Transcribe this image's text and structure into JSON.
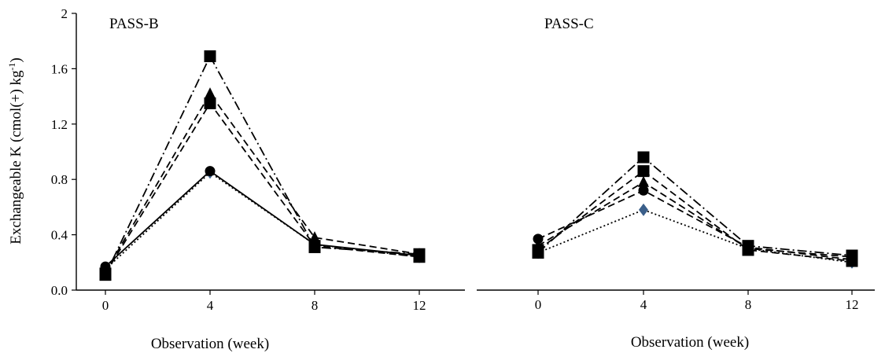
{
  "chart_data": [
    {
      "type": "line",
      "title": "PASS-B",
      "xlabel": "Observation (week)",
      "ylabel": "Exchangeable K (cmol(+) kg-1)",
      "ylabel_parts": {
        "main": "Exchangeable K (cmol(+) kg",
        "sup": "-1",
        "tail": ")"
      },
      "categories": [
        "0",
        "4",
        "8",
        "12"
      ],
      "x": [
        0,
        4,
        8,
        12
      ],
      "yticks": [
        "0.0",
        "0.4",
        "0.8",
        "1.2",
        "1.6",
        "2"
      ],
      "ylim": [
        0,
        2
      ],
      "grid": false,
      "series": [
        {
          "marker": "diamond",
          "line": "dotted",
          "color": "#3b5f8a",
          "values": [
            0.15,
            0.85,
            0.33,
            0.24
          ]
        },
        {
          "marker": "circle",
          "line": "solid",
          "color": "#000000",
          "values": [
            0.17,
            0.86,
            0.33,
            0.25
          ]
        },
        {
          "marker": "triangle",
          "line": "dashed",
          "color": "#000000",
          "values": [
            0.13,
            1.42,
            0.38,
            0.26
          ]
        },
        {
          "marker": "square",
          "line": "dashed",
          "color": "#000000",
          "values": [
            0.12,
            1.35,
            0.32,
            0.24
          ]
        },
        {
          "marker": "square",
          "line": "dashdot",
          "color": "#000000",
          "values": [
            0.11,
            1.69,
            0.31,
            0.26
          ]
        }
      ]
    },
    {
      "type": "line",
      "title": "PASS-C",
      "xlabel": "Observation (week)",
      "categories": [
        "0",
        "4",
        "8",
        "12"
      ],
      "x": [
        0,
        4,
        8,
        12
      ],
      "ylim": [
        0,
        2
      ],
      "grid": false,
      "series": [
        {
          "marker": "diamond",
          "line": "dotted",
          "color": "#3b5f8a",
          "values": [
            0.27,
            0.58,
            0.3,
            0.2
          ]
        },
        {
          "marker": "circle",
          "line": "dashed",
          "color": "#000000",
          "values": [
            0.37,
            0.72,
            0.31,
            0.22
          ]
        },
        {
          "marker": "triangle",
          "line": "dashed",
          "color": "#000000",
          "values": [
            0.32,
            0.78,
            0.3,
            0.24
          ]
        },
        {
          "marker": "square",
          "line": "dashed",
          "color": "#000000",
          "values": [
            0.29,
            0.86,
            0.29,
            0.21
          ]
        },
        {
          "marker": "square",
          "line": "dashdot",
          "color": "#000000",
          "values": [
            0.27,
            0.96,
            0.32,
            0.25
          ]
        }
      ]
    }
  ]
}
